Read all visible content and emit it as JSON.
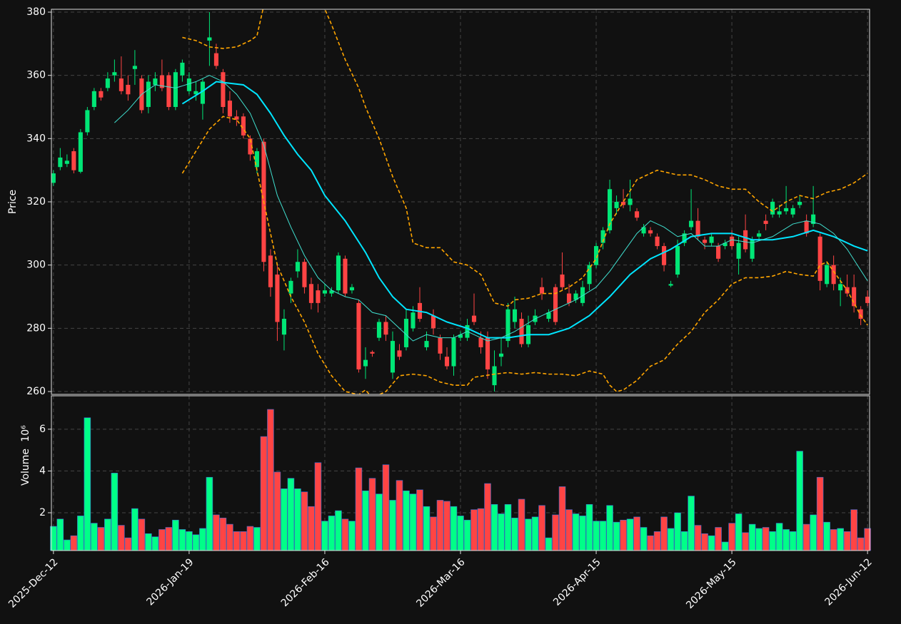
{
  "chart_data": {
    "type": "candlestick",
    "ylabel": "Price",
    "y2label": "Volume",
    "y2_exponent": "10⁶",
    "up_color": "#00e676",
    "down_color": "#ff4444",
    "volume_up_color": "#00ff88",
    "volume_down_color": "#ff4444",
    "grid": true,
    "xlim": [
      -0.3,
      120.3
    ],
    "xticks": [
      {
        "value": 0,
        "label": "2025-Dec-12"
      },
      {
        "value": 20,
        "label": "2026-Jan-19"
      },
      {
        "value": 40,
        "label": "2026-Feb-16"
      },
      {
        "value": 60,
        "label": "2026-Mar-16"
      },
      {
        "value": 80,
        "label": "2026-Apr-15"
      },
      {
        "value": 100,
        "label": "2026-May-15"
      },
      {
        "value": 120,
        "label": "2026-Jun-12"
      }
    ],
    "ylim": [
      259.1,
      380.9
    ],
    "yticks": [
      260,
      280,
      300,
      320,
      340,
      360,
      380
    ],
    "y2lim": [
      0.19,
      7.6
    ],
    "y2ticks": [
      2,
      4,
      6
    ],
    "open": [
      326,
      331,
      332,
      336,
      329.5,
      342,
      350,
      355,
      356,
      360,
      359,
      357,
      362,
      359,
      350,
      357,
      360,
      360,
      350,
      360,
      355,
      354,
      351,
      371,
      367,
      361,
      352,
      347,
      347,
      340,
      331,
      339,
      303,
      297,
      278,
      291,
      298,
      301,
      294,
      292,
      291,
      291,
      292,
      302,
      292,
      288,
      268,
      272.5,
      277,
      282,
      266,
      273,
      274,
      280,
      288,
      274,
      284,
      277,
      271,
      268,
      277,
      277,
      284,
      277,
      277,
      262,
      271,
      276,
      282,
      283,
      275,
      282,
      293,
      283,
      293,
      297,
      291,
      289,
      288,
      294,
      300,
      307,
      311,
      318,
      320,
      319,
      317,
      310,
      311,
      309,
      306,
      293.5,
      297,
      307,
      312,
      314,
      308,
      307,
      306,
      306,
      309,
      302,
      311,
      302,
      309,
      314,
      316,
      316,
      317,
      316,
      319,
      314,
      313,
      309,
      294,
      300,
      292,
      293,
      293,
      286,
      290
    ],
    "high": [
      330,
      337,
      335,
      337,
      343,
      350,
      356,
      356,
      361,
      365,
      366,
      360,
      368,
      360,
      360,
      361,
      365,
      361,
      362,
      365,
      361,
      358,
      359,
      380,
      370,
      362,
      355,
      349,
      348,
      341,
      337,
      340,
      305,
      300,
      286,
      296,
      305,
      302,
      296,
      294,
      294,
      293,
      304,
      303,
      294,
      289,
      274,
      273,
      283,
      284,
      279,
      275,
      286,
      287,
      293,
      279,
      286,
      278,
      274,
      278,
      279,
      283,
      291,
      279,
      279,
      273,
      277,
      288,
      290,
      285,
      284,
      286,
      296,
      286,
      294,
      304,
      294,
      292,
      295,
      301,
      307,
      312,
      327,
      322,
      324,
      327,
      318,
      313,
      312,
      310,
      307,
      295,
      308,
      311,
      324,
      318,
      309,
      310,
      307,
      308,
      311,
      309,
      316,
      309,
      311,
      316,
      321,
      319,
      325,
      319,
      322,
      316,
      325,
      310,
      301,
      303,
      296,
      297,
      297,
      287,
      292
    ],
    "low": [
      325,
      330,
      331,
      329,
      329,
      341,
      349,
      352,
      355,
      358,
      354,
      352,
      357,
      348,
      348,
      355,
      355,
      349,
      349,
      358,
      354,
      352,
      346,
      363,
      362,
      348,
      345,
      344,
      340,
      333,
      329,
      298,
      290,
      276,
      273,
      288,
      296,
      291,
      286,
      285,
      290,
      290,
      291,
      290,
      291,
      266,
      264,
      271,
      276,
      276,
      264,
      270,
      273,
      279,
      282,
      273,
      278,
      270,
      267,
      265,
      276,
      276,
      281,
      272,
      264,
      260,
      268,
      274,
      280,
      274,
      274,
      281,
      289,
      282,
      281,
      292,
      287,
      288,
      287,
      292,
      299,
      305,
      310,
      316,
      318,
      317,
      314,
      309,
      309,
      305,
      298,
      293,
      296,
      306,
      311,
      308,
      305,
      306,
      301,
      305,
      305,
      297,
      304,
      301,
      308,
      311,
      315,
      315,
      316,
      315,
      318,
      309,
      312,
      292,
      293,
      292,
      287,
      290,
      285,
      281,
      287
    ],
    "close": [
      329,
      334,
      333,
      330,
      342,
      349,
      355,
      353,
      359,
      361,
      355,
      354,
      363,
      349,
      358,
      359,
      356,
      350,
      361,
      364,
      359,
      355,
      358,
      372,
      363,
      350,
      347,
      346,
      341,
      335,
      336,
      301,
      293,
      282,
      283,
      295,
      301,
      293,
      288,
      288,
      292,
      292,
      303,
      291,
      293,
      267,
      270,
      272,
      282,
      278,
      276,
      271,
      283,
      285,
      283,
      276,
      280,
      272,
      268,
      277,
      278,
      281,
      282,
      274,
      267,
      268,
      272,
      286,
      286,
      275,
      281,
      284,
      291,
      285,
      282,
      293,
      288,
      291,
      293,
      300,
      306,
      311,
      324,
      320,
      319,
      321,
      315,
      312,
      310,
      306,
      300,
      294,
      306,
      310,
      314,
      309,
      307,
      309,
      302,
      307,
      306,
      307,
      305,
      308,
      310,
      313,
      320,
      317,
      318,
      318,
      320,
      310,
      316,
      295,
      300,
      294,
      294,
      291,
      287,
      283,
      288
    ],
    "volume": [
      1.35,
      1.7,
      0.7,
      0.9,
      1.85,
      6.55,
      1.5,
      1.3,
      1.7,
      3.9,
      1.4,
      0.8,
      2.2,
      1.7,
      1.0,
      0.85,
      1.2,
      1.3,
      1.65,
      1.2,
      1.1,
      0.95,
      1.25,
      3.7,
      1.9,
      1.75,
      1.45,
      1.1,
      1.1,
      1.35,
      1.3,
      5.65,
      6.95,
      3.95,
      3.15,
      3.65,
      3.15,
      3.0,
      2.3,
      4.4,
      1.6,
      1.85,
      2.1,
      1.7,
      1.6,
      4.15,
      3.05,
      3.65,
      2.9,
      4.3,
      2.6,
      3.55,
      3.05,
      2.9,
      3.1,
      2.3,
      1.8,
      2.6,
      2.55,
      2.3,
      1.85,
      1.65,
      2.15,
      2.2,
      3.4,
      2.4,
      1.95,
      2.4,
      1.75,
      2.65,
      1.7,
      1.8,
      2.35,
      0.8,
      1.9,
      3.25,
      2.15,
      1.95,
      1.85,
      2.4,
      1.6,
      1.6,
      2.35,
      1.55,
      1.65,
      1.7,
      1.8,
      1.3,
      0.9,
      1.1,
      1.8,
      1.25,
      2.0,
      1.1,
      2.8,
      1.4,
      1.0,
      0.9,
      1.3,
      0.6,
      1.5,
      1.95,
      1.05,
      1.45,
      1.25,
      1.3,
      1.1,
      1.5,
      1.2,
      1.1,
      4.95,
      1.45,
      1.9,
      3.7,
      1.55,
      1.2,
      1.25,
      1.1,
      2.15,
      0.8,
      1.25
    ],
    "lines": [
      {
        "color": "#00e5ff",
        "width": 2,
        "dashed": false,
        "x": [
          19,
          22,
          24,
          28,
          30,
          32,
          34,
          36,
          38,
          40,
          43,
          46,
          48,
          50,
          52,
          55,
          58,
          61,
          64,
          67,
          70,
          73,
          76,
          79,
          82,
          85,
          88,
          91,
          94,
          97,
          100,
          103,
          106,
          109,
          112,
          115,
          118,
          120
        ],
        "values": [
          351,
          355,
          358,
          357,
          354,
          348,
          341,
          335,
          330,
          322,
          314,
          304,
          296,
          290,
          286,
          285,
          282,
          280,
          277,
          277,
          278,
          278,
          280,
          284,
          290,
          297,
          302,
          305,
          309,
          310,
          310,
          308,
          308,
          309,
          311,
          309,
          306,
          304.5
        ]
      },
      {
        "color": "#40e0d0",
        "width": 1,
        "dashed": false,
        "x": [
          9,
          11,
          13,
          15,
          18,
          21,
          23,
          25,
          27,
          29,
          31,
          33,
          35,
          37,
          39,
          41,
          43,
          45,
          47,
          49,
          51,
          53,
          55,
          57,
          59,
          61,
          64,
          66,
          68,
          71,
          74,
          77,
          80,
          82,
          84,
          86,
          88,
          90,
          92,
          94,
          96,
          98,
          100,
          103,
          106,
          109,
          111,
          113,
          115,
          117,
          120
        ],
        "values": [
          345,
          349,
          354,
          357,
          356,
          358,
          360,
          358,
          354,
          348,
          338,
          322,
          312,
          303,
          296,
          292,
          290,
          289,
          285,
          284,
          280,
          276,
          278,
          277,
          277,
          279,
          276,
          277,
          279,
          283,
          286,
          289,
          293,
          298,
          304,
          310,
          314,
          312,
          309,
          310,
          306,
          306,
          308,
          307,
          309,
          313,
          314,
          313,
          310,
          305,
          295
        ]
      },
      {
        "color": "#ffa500",
        "width": 1.6,
        "dashed": true,
        "x": [
          19,
          21,
          23,
          25,
          27,
          29,
          30,
          31,
          36,
          40,
          41,
          43,
          45,
          46,
          48,
          50,
          52,
          53,
          55,
          57,
          59,
          61,
          63,
          65,
          67,
          68,
          70,
          72,
          74,
          76,
          78,
          80,
          82,
          84,
          86,
          89,
          92,
          94,
          96,
          98,
          100,
          102,
          104,
          106,
          108,
          110,
          112,
          114,
          116,
          118,
          120
        ],
        "values": [
          372,
          371,
          369,
          368.5,
          369,
          371,
          372.5,
          382,
          395,
          381,
          376,
          365,
          356,
          350,
          340,
          328,
          318,
          307,
          305.5,
          305.5,
          301,
          300,
          297,
          288,
          287,
          289,
          289.5,
          291,
          291,
          293,
          296,
          302,
          313,
          320,
          327,
          330,
          328.5,
          328.5,
          327,
          325,
          324,
          324,
          320,
          317,
          320,
          322,
          321,
          323,
          324,
          326,
          329
        ]
      },
      {
        "color": "#ffa500",
        "width": 1.6,
        "dashed": true,
        "x": [
          19,
          21,
          23,
          25,
          27,
          29,
          31,
          33,
          35,
          37,
          39,
          41,
          43,
          45,
          46,
          47,
          49,
          51,
          53,
          55,
          57,
          59,
          61,
          62,
          65,
          67,
          69,
          71,
          73,
          75,
          77,
          79,
          81,
          82,
          83,
          84,
          86,
          88,
          90,
          92,
          94,
          96,
          98,
          100,
          102,
          104,
          106,
          108,
          110,
          112,
          113,
          114,
          115,
          117,
          119,
          120
        ],
        "values": [
          329,
          336,
          343,
          347,
          346,
          340,
          320,
          300,
          290,
          282,
          272,
          265,
          260,
          259,
          260.5,
          258,
          260,
          265,
          265.5,
          265,
          263,
          262,
          262,
          264.5,
          265.5,
          266,
          265.5,
          266,
          265.5,
          265.5,
          265,
          266.5,
          265.5,
          262,
          260,
          260.5,
          263.5,
          268,
          270,
          275,
          279,
          285,
          289,
          294,
          296,
          296,
          296.5,
          298,
          297,
          296.5,
          300,
          301,
          298,
          292,
          284,
          281
        ]
      }
    ]
  }
}
